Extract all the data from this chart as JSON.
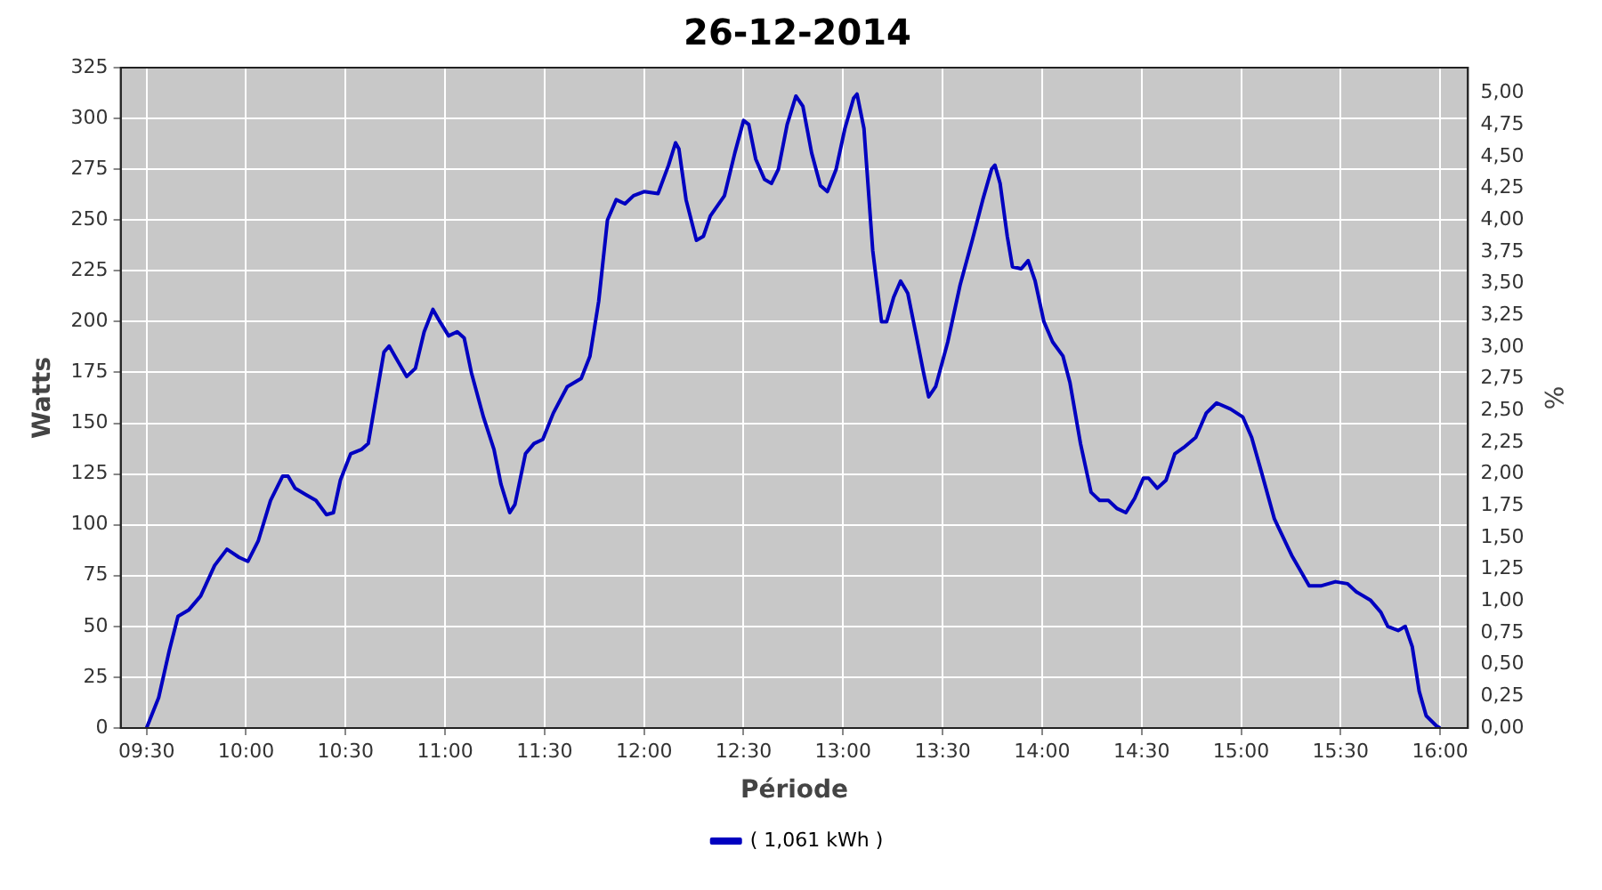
{
  "chart_data": {
    "type": "line",
    "title": "26-12-2014",
    "xlabel": "Période",
    "ylabel": "Watts",
    "y2label": "%",
    "xlim": [
      9.37,
      16.14
    ],
    "xticks": [
      {
        "value": 9.5,
        "label": "09:30"
      },
      {
        "value": 10,
        "label": "10:00"
      },
      {
        "value": 10.5,
        "label": "10:30"
      },
      {
        "value": 11,
        "label": "11:00"
      },
      {
        "value": 11.5,
        "label": "11:30"
      },
      {
        "value": 12,
        "label": "12:00"
      },
      {
        "value": 12.5,
        "label": "12:30"
      },
      {
        "value": 13,
        "label": "13:00"
      },
      {
        "value": 13.5,
        "label": "13:30"
      },
      {
        "value": 14,
        "label": "14:00"
      },
      {
        "value": 14.5,
        "label": "14:30"
      },
      {
        "value": 15,
        "label": "15:00"
      },
      {
        "value": 15.5,
        "label": "15:30"
      },
      {
        "value": 16,
        "label": "16:00"
      }
    ],
    "ylim": [
      0,
      325
    ],
    "yticks": [
      0,
      25,
      50,
      75,
      100,
      125,
      150,
      175,
      200,
      225,
      250,
      275,
      300,
      325
    ],
    "y2lim": [
      0,
      5.2
    ],
    "y2ticks": [
      {
        "value": 0,
        "label": "0,00"
      },
      {
        "value": 0.25,
        "label": "0,25"
      },
      {
        "value": 0.5,
        "label": "0,50"
      },
      {
        "value": 0.75,
        "label": "0,75"
      },
      {
        "value": 1,
        "label": "1,00"
      },
      {
        "value": 1.25,
        "label": "1,25"
      },
      {
        "value": 1.5,
        "label": "1,50"
      },
      {
        "value": 1.75,
        "label": "1,75"
      },
      {
        "value": 2,
        "label": "2,00"
      },
      {
        "value": 2.25,
        "label": "2,25"
      },
      {
        "value": 2.5,
        "label": "2,50"
      },
      {
        "value": 2.75,
        "label": "2,75"
      },
      {
        "value": 3,
        "label": "3,00"
      },
      {
        "value": 3.25,
        "label": "3,25"
      },
      {
        "value": 3.5,
        "label": "3,50"
      },
      {
        "value": 3.75,
        "label": "3,75"
      },
      {
        "value": 4,
        "label": "4,00"
      },
      {
        "value": 4.25,
        "label": "4,25"
      },
      {
        "value": 4.5,
        "label": "4,50"
      },
      {
        "value": 4.75,
        "label": "4,75"
      },
      {
        "value": 5,
        "label": "5,00"
      }
    ],
    "grid": true,
    "legend": "bottom",
    "marker": "none",
    "line_style": "solid",
    "series": [
      {
        "name": "( 1,061 kWh )",
        "color": "#0000c0",
        "x": [
          9.5,
          9.561,
          9.614,
          9.658,
          9.711,
          9.772,
          9.842,
          9.904,
          9.965,
          10.009,
          10.061,
          10.123,
          10.184,
          10.211,
          10.246,
          10.298,
          10.351,
          10.404,
          10.439,
          10.474,
          10.526,
          10.579,
          10.614,
          10.649,
          10.693,
          10.719,
          10.754,
          10.807,
          10.851,
          10.895,
          10.939,
          10.974,
          11.018,
          11.061,
          11.096,
          11.132,
          11.193,
          11.246,
          11.281,
          11.325,
          11.351,
          11.404,
          11.447,
          11.491,
          11.544,
          11.614,
          11.684,
          11.728,
          11.772,
          11.816,
          11.86,
          11.904,
          11.947,
          12.0,
          12.07,
          12.123,
          12.158,
          12.175,
          12.211,
          12.263,
          12.298,
          12.333,
          12.404,
          12.456,
          12.5,
          12.526,
          12.561,
          12.605,
          12.64,
          12.675,
          12.719,
          12.763,
          12.798,
          12.842,
          12.886,
          12.921,
          12.965,
          13.009,
          13.053,
          13.07,
          13.105,
          13.149,
          13.193,
          13.219,
          13.254,
          13.289,
          13.325,
          13.368,
          13.404,
          13.43,
          13.465,
          13.526,
          13.588,
          13.649,
          13.702,
          13.746,
          13.763,
          13.789,
          13.825,
          13.851,
          13.895,
          13.93,
          13.965,
          14.009,
          14.053,
          14.105,
          14.14,
          14.193,
          14.246,
          14.289,
          14.333,
          14.377,
          14.421,
          14.465,
          14.509,
          14.535,
          14.579,
          14.623,
          14.667,
          14.711,
          14.772,
          14.825,
          14.877,
          14.947,
          15.009,
          15.053,
          15.105,
          15.167,
          15.254,
          15.342,
          15.404,
          15.474,
          15.535,
          15.579,
          15.649,
          15.702,
          15.737,
          15.789,
          15.825,
          15.86,
          15.895,
          15.93,
          15.982,
          16.0
        ],
        "values": [
          0,
          15,
          38,
          55,
          58,
          65,
          80,
          88,
          84,
          82,
          92,
          112,
          124,
          124,
          118,
          115,
          112,
          105,
          106,
          122,
          135,
          137,
          140,
          160,
          185,
          188,
          182,
          173,
          177,
          195,
          206,
          200,
          193,
          195,
          192,
          175,
          153,
          137,
          120,
          106,
          110,
          135,
          140,
          142,
          155,
          168,
          172,
          183,
          210,
          250,
          260,
          258,
          262,
          264,
          263,
          277,
          288,
          285,
          260,
          240,
          242,
          252,
          262,
          283,
          299,
          297,
          280,
          270,
          268,
          275,
          297,
          311,
          306,
          283,
          267,
          264,
          275,
          295,
          310,
          312,
          295,
          235,
          200,
          200,
          212,
          220,
          214,
          193,
          175,
          163,
          168,
          190,
          218,
          240,
          260,
          275,
          277,
          268,
          242,
          227,
          226,
          230,
          220,
          200,
          190,
          183,
          170,
          140,
          116,
          112,
          112,
          108,
          106,
          113,
          123,
          123,
          118,
          122,
          135,
          138,
          143,
          155,
          160,
          157,
          153,
          143,
          125,
          103,
          85,
          70,
          70,
          72,
          71,
          67,
          63,
          57,
          50,
          48,
          50,
          40,
          18,
          6,
          1,
          0
        ]
      }
    ]
  }
}
